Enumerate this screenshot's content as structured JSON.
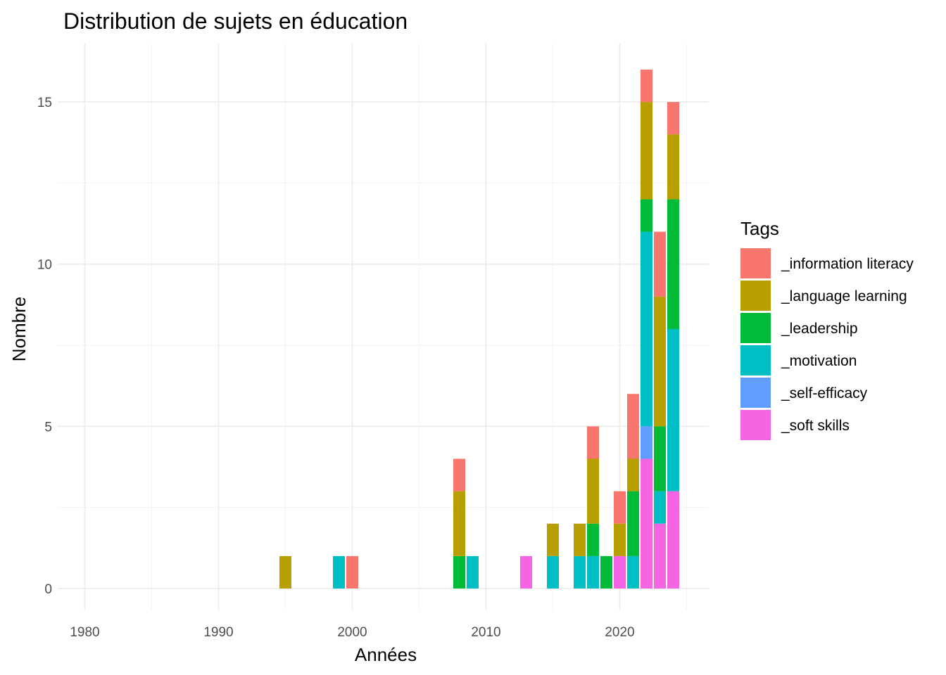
{
  "chart_data": {
    "type": "bar",
    "stacked": true,
    "title": "Distribution de sujets en éducation",
    "xlabel": "Années",
    "ylabel": "Nombre",
    "xlim": [
      1978,
      2027
    ],
    "ylim": [
      0,
      16
    ],
    "x_ticks": [
      1980,
      1990,
      2000,
      2010,
      2020
    ],
    "y_ticks": [
      0,
      5,
      10,
      15
    ],
    "grid": true,
    "legend": {
      "title": "Tags",
      "position": "right"
    },
    "years": [
      1995,
      1999,
      2000,
      2008,
      2009,
      2013,
      2015,
      2017,
      2018,
      2019,
      2020,
      2021,
      2022,
      2023,
      2024
    ],
    "series": [
      {
        "name": "_information literacy",
        "color": "#F8766D",
        "values": [
          0,
          0,
          1,
          1,
          0,
          0,
          0,
          0,
          1,
          0,
          1,
          2,
          1,
          2,
          1
        ]
      },
      {
        "name": "_language learning",
        "color": "#B79F00",
        "values": [
          1,
          0,
          0,
          2,
          0,
          0,
          1,
          1,
          2,
          0,
          1,
          1,
          3,
          4,
          2
        ]
      },
      {
        "name": "_leadership",
        "color": "#00BA38",
        "values": [
          0,
          0,
          0,
          1,
          0,
          0,
          0,
          0,
          1,
          1,
          0,
          2,
          1,
          2,
          4
        ]
      },
      {
        "name": "_motivation",
        "color": "#00BFC4",
        "values": [
          0,
          1,
          0,
          0,
          1,
          0,
          1,
          1,
          1,
          0,
          0,
          1,
          6,
          1,
          5
        ]
      },
      {
        "name": "_self-efficacy",
        "color": "#619CFF",
        "values": [
          0,
          0,
          0,
          0,
          0,
          0,
          0,
          0,
          0,
          0,
          0,
          0,
          1,
          0,
          0
        ]
      },
      {
        "name": "_soft skills",
        "color": "#F564E3",
        "values": [
          0,
          0,
          0,
          0,
          0,
          1,
          0,
          0,
          0,
          0,
          1,
          0,
          4,
          2,
          3
        ]
      }
    ]
  }
}
